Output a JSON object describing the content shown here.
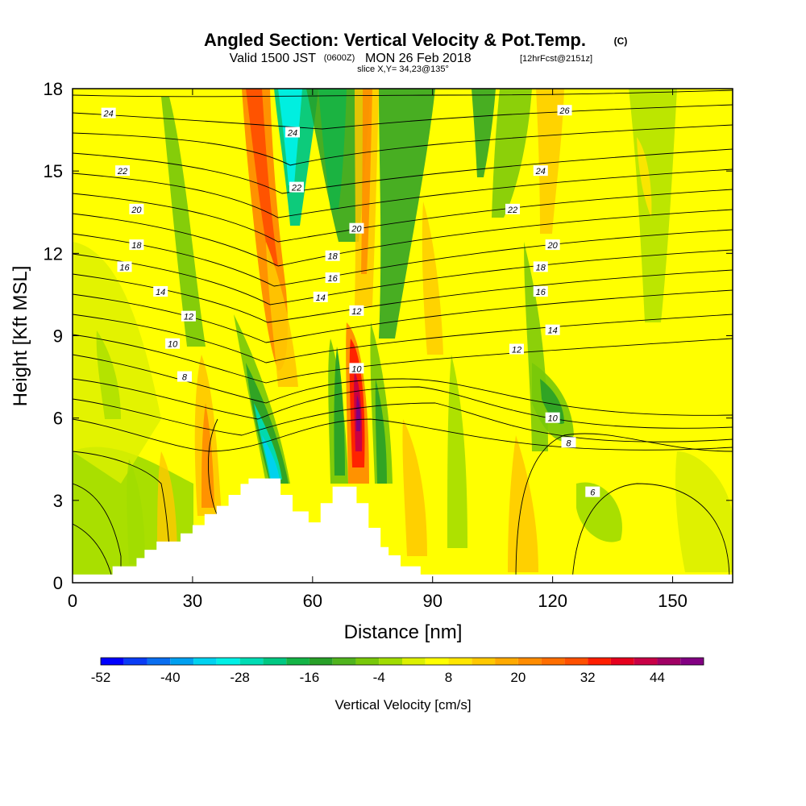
{
  "title": {
    "main": "Angled Section: Vertical Velocity & Pot.Temp.",
    "copyright": "(C)",
    "valid_prefix": "Valid 1500 JST",
    "valid_utc": "(0600Z)",
    "valid_date": "MON 26 Feb 2018",
    "forecast": "[12hrFcst@2151z]",
    "slice": "slice X,Y= 34,23@135°"
  },
  "chart_data": {
    "type": "heatmap",
    "xlabel": "Distance [nm]",
    "ylabel": "Height [Kft MSL]",
    "xlim": [
      0,
      165
    ],
    "ylim": [
      0,
      18
    ],
    "x_ticks": [
      "0",
      "30",
      "60",
      "90",
      "120",
      "150"
    ],
    "y_ticks": [
      "0",
      "3",
      "6",
      "9",
      "12",
      "15",
      "18"
    ],
    "colorbar": {
      "title": "Vertical Velocity [cm/s]",
      "tick_labels": [
        "-52",
        "-40",
        "-28",
        "-16",
        "-4",
        "8",
        "20",
        "32",
        "44"
      ],
      "bins": [
        -52,
        -48,
        -44,
        -40,
        -36,
        -32,
        -28,
        -24,
        -20,
        -16,
        -12,
        -8,
        -4,
        0,
        4,
        8,
        12,
        16,
        20,
        24,
        28,
        32,
        36,
        40,
        44,
        48,
        52
      ],
      "colors": [
        "#0000ff",
        "#0a3cf5",
        "#0a6ef0",
        "#00a0f0",
        "#00d2f0",
        "#00f0e6",
        "#00dcb4",
        "#00c882",
        "#14b446",
        "#28a028",
        "#50b41e",
        "#78c80a",
        "#a0dc00",
        "#dcf000",
        "#ffff00",
        "#ffe600",
        "#ffc800",
        "#ffaa00",
        "#ff8c00",
        "#ff6e00",
        "#ff5000",
        "#ff1e00",
        "#e6001e",
        "#c80046",
        "#a00064",
        "#820082"
      ]
    },
    "terrain_profile": [
      {
        "x": 0,
        "height": 0.3
      },
      {
        "x": 10,
        "height": 0.6
      },
      {
        "x": 16,
        "height": 0.9
      },
      {
        "x": 18,
        "height": 1.2
      },
      {
        "x": 21,
        "height": 1.5
      },
      {
        "x": 27,
        "height": 1.8
      },
      {
        "x": 30,
        "height": 2.1
      },
      {
        "x": 33,
        "height": 2.5
      },
      {
        "x": 36,
        "height": 2.8
      },
      {
        "x": 39,
        "height": 3.2
      },
      {
        "x": 42,
        "height": 3.6
      },
      {
        "x": 44,
        "height": 3.8
      },
      {
        "x": 52,
        "height": 3.2
      },
      {
        "x": 55,
        "height": 2.6
      },
      {
        "x": 59,
        "height": 2.2
      },
      {
        "x": 62,
        "height": 2.9
      },
      {
        "x": 65,
        "height": 3.5
      },
      {
        "x": 71,
        "height": 2.9
      },
      {
        "x": 74,
        "height": 2.0
      },
      {
        "x": 77,
        "height": 1.3
      },
      {
        "x": 79,
        "height": 1.0
      },
      {
        "x": 82,
        "height": 0.6
      },
      {
        "x": 87,
        "height": 0.3
      },
      {
        "x": 91,
        "height": 0.3
      },
      {
        "x": 165,
        "height": 0.3
      }
    ],
    "potential_temperature_labels": [
      {
        "x": 9,
        "y": 17.1,
        "label": "24"
      },
      {
        "x": 12.5,
        "y": 15.0,
        "label": "22"
      },
      {
        "x": 16,
        "y": 13.6,
        "label": "20"
      },
      {
        "x": 16,
        "y": 12.3,
        "label": "18"
      },
      {
        "x": 13,
        "y": 11.5,
        "label": "16"
      },
      {
        "x": 22,
        "y": 10.6,
        "label": "14"
      },
      {
        "x": 29,
        "y": 9.7,
        "label": "12"
      },
      {
        "x": 25,
        "y": 8.7,
        "label": "10"
      },
      {
        "x": 28,
        "y": 7.5,
        "label": "8"
      },
      {
        "x": 55,
        "y": 16.4,
        "label": "24"
      },
      {
        "x": 56,
        "y": 14.4,
        "label": "22"
      },
      {
        "x": 71,
        "y": 12.9,
        "label": "20"
      },
      {
        "x": 65,
        "y": 11.9,
        "label": "18"
      },
      {
        "x": 65,
        "y": 11.1,
        "label": "16"
      },
      {
        "x": 62,
        "y": 10.4,
        "label": "14"
      },
      {
        "x": 71,
        "y": 9.9,
        "label": "12"
      },
      {
        "x": 71,
        "y": 7.8,
        "label": "10"
      },
      {
        "x": 123,
        "y": 17.2,
        "label": "26"
      },
      {
        "x": 117,
        "y": 15.0,
        "label": "24"
      },
      {
        "x": 110,
        "y": 13.6,
        "label": "22"
      },
      {
        "x": 120,
        "y": 12.3,
        "label": "20"
      },
      {
        "x": 117,
        "y": 11.5,
        "label": "18"
      },
      {
        "x": 117,
        "y": 10.6,
        "label": "16"
      },
      {
        "x": 120,
        "y": 9.2,
        "label": "14"
      },
      {
        "x": 111,
        "y": 8.5,
        "label": "12"
      },
      {
        "x": 120,
        "y": 6.0,
        "label": "10"
      },
      {
        "x": 124,
        "y": 5.1,
        "label": "8"
      },
      {
        "x": 130,
        "y": 3.3,
        "label": "6"
      }
    ]
  }
}
